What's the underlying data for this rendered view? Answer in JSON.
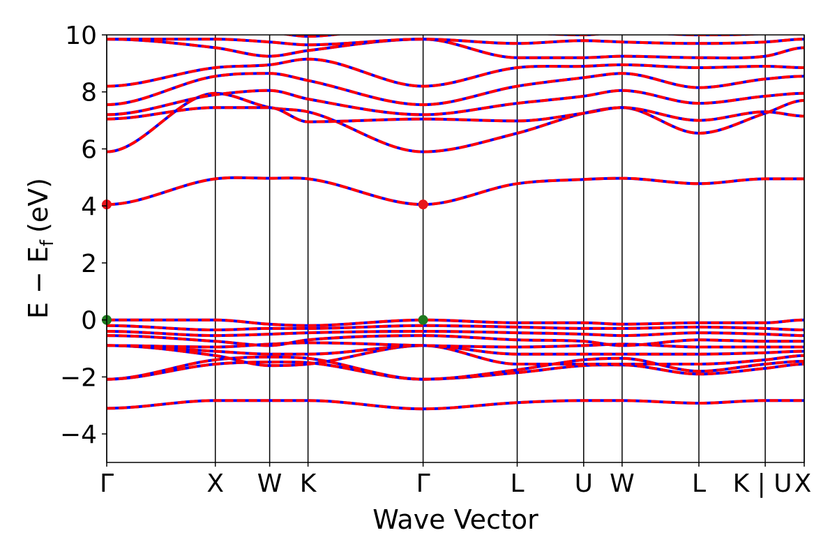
{
  "chart_data": {
    "type": "line",
    "title": "",
    "xlabel": "Wave Vector",
    "ylabel": "E − E",
    "ylabel_subscript": "f",
    "ylabel_unit": "(eV)",
    "ylim": [
      -5,
      10
    ],
    "yticks": [
      -4,
      -2,
      0,
      2,
      4,
      6,
      8,
      10
    ],
    "ytick_labels": [
      "−4",
      "−2",
      "0",
      "2",
      "4",
      "6",
      "8",
      "10"
    ],
    "xlim": [
      0,
      1
    ],
    "kpoints": [
      {
        "label": "Γ",
        "x": 0.0
      },
      {
        "label": "X",
        "x": 0.1557
      },
      {
        "label": "W",
        "x": 0.2336
      },
      {
        "label": "K",
        "x": 0.2886
      },
      {
        "label": "Γ",
        "x": 0.4536
      },
      {
        "label": "L",
        "x": 0.5885
      },
      {
        "label": "U",
        "x": 0.6838
      },
      {
        "label": "W",
        "x": 0.7389
      },
      {
        "label": "L",
        "x": 0.849
      },
      {
        "label": "K | U",
        "x": 0.9441
      },
      {
        "label": "X",
        "x": 1.0
      }
    ],
    "series_style": {
      "spin_up_color": "#0000ff",
      "spin_down_color": "#ff0000",
      "dashed": true
    },
    "cbm": {
      "energy": 4.05,
      "points_x": [
        0.0,
        0.4536
      ],
      "color": "#e8141b"
    },
    "vbm": {
      "energy": 0.0,
      "points_x": [
        0.0,
        0.4536
      ],
      "color": "#1f7a1f"
    },
    "bands": [
      {
        "name": "b1",
        "energies": [
          -3.1,
          -2.83,
          -2.83,
          -2.83,
          -3.12,
          -2.9,
          -2.83,
          -2.83,
          -2.92,
          -2.83,
          -2.83
        ]
      },
      {
        "name": "b2",
        "energies": [
          -2.08,
          -1.55,
          -1.48,
          -1.5,
          -2.08,
          -1.85,
          -1.6,
          -1.58,
          -1.9,
          -1.7,
          -1.55
        ]
      },
      {
        "name": "b3",
        "energies": [
          -2.08,
          -1.4,
          -1.3,
          -1.35,
          -2.08,
          -1.75,
          -1.4,
          -1.35,
          -1.8,
          -1.55,
          -1.45
        ]
      },
      {
        "name": "b4",
        "energies": [
          -0.9,
          -1.25,
          -1.6,
          -1.55,
          -0.9,
          -1.55,
          -1.55,
          -1.55,
          -1.55,
          -1.4,
          -1.25
        ]
      },
      {
        "name": "b5",
        "energies": [
          -0.9,
          -1.1,
          -1.2,
          -1.2,
          -0.9,
          -1.2,
          -1.2,
          -1.2,
          -1.2,
          -1.15,
          -1.1
        ]
      },
      {
        "name": "b6",
        "energies": [
          -0.9,
          -0.95,
          -0.85,
          -0.8,
          -0.9,
          -0.95,
          -0.9,
          -0.85,
          -0.95,
          -0.95,
          -0.95
        ]
      },
      {
        "name": "b7",
        "energies": [
          -0.55,
          -0.75,
          -0.9,
          -0.7,
          -0.55,
          -0.7,
          -0.75,
          -0.9,
          -0.7,
          -0.75,
          -0.75
        ]
      },
      {
        "name": "b8",
        "energies": [
          -0.4,
          -0.55,
          -0.5,
          -0.45,
          -0.4,
          -0.45,
          -0.5,
          -0.55,
          -0.45,
          -0.5,
          -0.55
        ]
      },
      {
        "name": "b9",
        "energies": [
          -0.2,
          -0.35,
          -0.3,
          -0.3,
          -0.2,
          -0.25,
          -0.3,
          -0.3,
          -0.25,
          -0.3,
          -0.35
        ]
      },
      {
        "name": "b10",
        "energies": [
          0.0,
          0.0,
          -0.15,
          -0.2,
          0.0,
          -0.1,
          -0.1,
          -0.15,
          -0.1,
          -0.1,
          0.0
        ]
      },
      {
        "name": "b11",
        "energies": [
          4.05,
          4.95,
          4.97,
          4.95,
          4.05,
          4.78,
          4.93,
          4.97,
          4.78,
          4.95,
          4.95
        ]
      },
      {
        "name": "b12",
        "energies": [
          5.9,
          7.95,
          7.45,
          7.3,
          5.9,
          6.55,
          7.25,
          7.45,
          6.55,
          7.25,
          7.7
        ]
      },
      {
        "name": "b13",
        "energies": [
          7.05,
          7.45,
          7.45,
          6.95,
          7.05,
          6.98,
          7.25,
          7.45,
          7.0,
          7.3,
          7.15
        ]
      },
      {
        "name": "b14",
        "energies": [
          7.2,
          7.9,
          8.05,
          7.75,
          7.2,
          7.6,
          7.85,
          8.05,
          7.6,
          7.85,
          7.95
        ]
      },
      {
        "name": "b15",
        "energies": [
          7.55,
          8.55,
          8.65,
          8.4,
          7.55,
          8.2,
          8.5,
          8.65,
          8.15,
          8.45,
          8.55
        ]
      },
      {
        "name": "b16",
        "energies": [
          8.2,
          8.85,
          8.95,
          9.15,
          8.2,
          8.85,
          8.9,
          8.95,
          8.85,
          8.9,
          8.85
        ]
      },
      {
        "name": "b17",
        "energies": [
          9.85,
          9.55,
          9.25,
          9.45,
          9.85,
          9.2,
          9.2,
          9.25,
          9.2,
          9.25,
          9.55
        ]
      },
      {
        "name": "b18",
        "energies": [
          9.85,
          9.85,
          9.75,
          9.65,
          9.85,
          9.7,
          9.8,
          9.75,
          9.7,
          9.75,
          9.85
        ]
      },
      {
        "name": "b19",
        "energies": [
          10.4,
          10.2,
          10.1,
          9.95,
          10.4,
          10.1,
          10.0,
          10.1,
          10.0,
          10.05,
          10.2
        ]
      }
    ]
  }
}
